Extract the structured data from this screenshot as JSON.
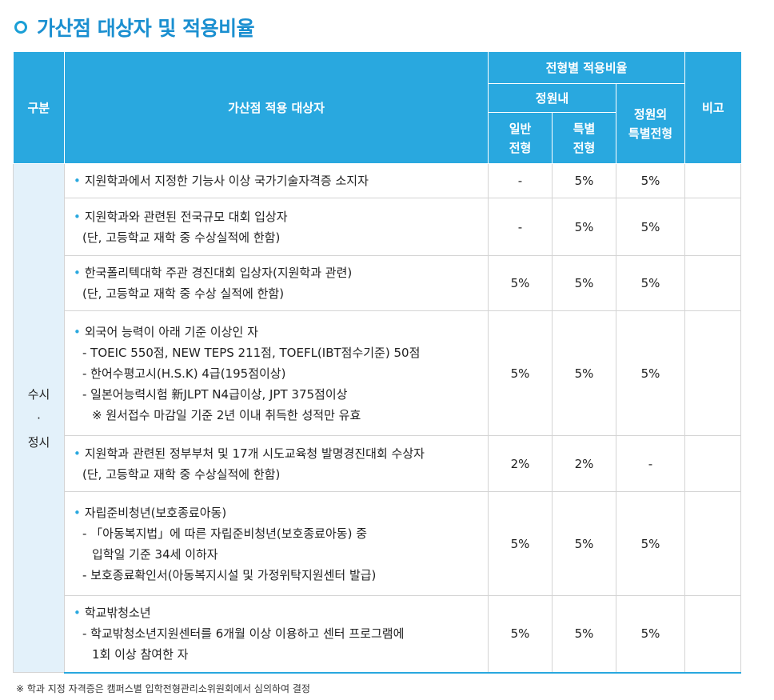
{
  "title": "가산점 대상자 및 적용비율",
  "header": {
    "gubun": "구분",
    "target": "가산점 적용 대상자",
    "rate_group": "전형별 적용비율",
    "within": "정원내",
    "general": [
      "일반",
      "전형"
    ],
    "special": [
      "특별",
      "전형"
    ],
    "outside": [
      "정원외",
      "특별전형"
    ],
    "note": "비고"
  },
  "gubun_value": [
    "수시",
    "·",
    "정시"
  ],
  "rows": [
    {
      "lines": [
        {
          "b": true,
          "t": "지원학과에서 지정한 기능사 이상 국가기술자격증 소지자"
        }
      ],
      "general": "-",
      "special": "5%",
      "outside": "5%"
    },
    {
      "lines": [
        {
          "b": true,
          "t": "지원학과와 관련된 전국규모 대회 입상자"
        },
        {
          "i": 1,
          "t": "(단, 고등학교 재학 중 수상실적에 한함)"
        }
      ],
      "general": "-",
      "special": "5%",
      "outside": "5%"
    },
    {
      "lines": [
        {
          "b": true,
          "t": "한국폴리텍대학 주관 경진대회 입상자(지원학과 관련)"
        },
        {
          "i": 1,
          "t": "(단, 고등학교 재학 중 수상 실적에 한함)"
        }
      ],
      "general": "5%",
      "special": "5%",
      "outside": "5%"
    },
    {
      "lines": [
        {
          "b": true,
          "t": "외국어 능력이 아래 기준 이상인 자"
        },
        {
          "i": 1,
          "t": "- TOEIC 550점, NEW TEPS 211점, TOEFL(IBT점수기준) 50점"
        },
        {
          "i": 1,
          "t": "- 한어수평고시(H.S.K) 4급(195점이상)"
        },
        {
          "i": 1,
          "t": "- 일본어능력시험 新JLPT N4급이상, JPT 375점이상"
        },
        {
          "i": 2,
          "t": "※ 원서접수 마감일 기준 2년 이내 취득한 성적만 유효"
        }
      ],
      "general": "5%",
      "special": "5%",
      "outside": "5%"
    },
    {
      "lines": [
        {
          "b": true,
          "t": "지원학과 관련된 정부부처 및 17개 시도교육청 발명경진대회 수상자"
        },
        {
          "i": 1,
          "t": "(단, 고등학교 재학 중 수상실적에 한함)"
        }
      ],
      "general": "2%",
      "special": "2%",
      "outside": "-"
    },
    {
      "lines": [
        {
          "b": true,
          "t": "자립준비청년(보호종료아동)"
        },
        {
          "i": 1,
          "t": "- 「아동복지법」에 따른 자립준비청년(보호종료아동) 중"
        },
        {
          "i": 2,
          "t": "입학일 기준 34세 이하자"
        },
        {
          "i": 1,
          "t": "- 보호종료확인서(아동복지시설 및 가정위탁지원센터 발급)"
        }
      ],
      "general": "5%",
      "special": "5%",
      "outside": "5%"
    },
    {
      "lines": [
        {
          "b": true,
          "t": "학교밖청소년"
        },
        {
          "i": 1,
          "t": "- 학교밖청소년지원센터를 6개월 이상 이용하고 센터 프로그램에"
        },
        {
          "i": 2,
          "t": "1회 이상 참여한 자"
        }
      ],
      "general": "5%",
      "special": "5%",
      "outside": "5%"
    }
  ],
  "footnote": "※ 학과 지정 자격증은 캠퍼스별 입학전형관리소위원회에서 심의하여 결정"
}
